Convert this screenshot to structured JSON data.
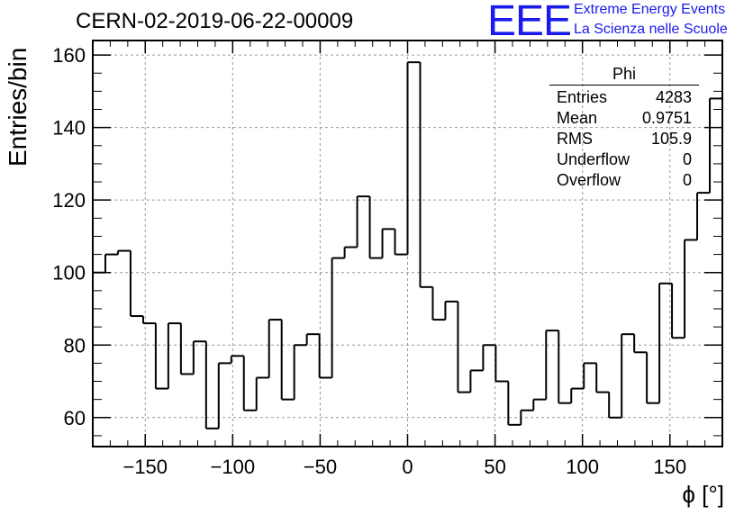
{
  "title": "CERN-02-2019-06-22-00009",
  "logo": {
    "text": "EEE",
    "line1": "Extreme Energy Events",
    "line2": "La Scienza nelle Scuole",
    "color": "#1a1aee"
  },
  "stats": {
    "name": "Phi",
    "rows": [
      {
        "label": "Entries",
        "value": "4283"
      },
      {
        "label": "Mean",
        "value": "0.9751"
      },
      {
        "label": "RMS",
        "value": "105.9"
      },
      {
        "label": "Underflow",
        "value": "0"
      },
      {
        "label": "Overflow",
        "value": "0"
      }
    ]
  },
  "chart_data": {
    "type": "histogram",
    "title": "CERN-02-2019-06-22-00009",
    "xlabel": "ϕ [°]",
    "ylabel": "Entries/bin",
    "xlim": [
      -180,
      180
    ],
    "ylim": [
      52,
      164
    ],
    "bin_width": 7.2,
    "bin_edges_start": -180,
    "values": [
      100,
      105,
      106,
      88,
      86,
      68,
      86,
      72,
      81,
      57,
      75,
      77,
      62,
      71,
      87,
      65,
      80,
      83,
      71,
      104,
      107,
      121,
      104,
      112,
      105,
      158,
      96,
      87,
      92,
      67,
      73,
      80,
      70,
      58,
      62,
      65,
      84,
      64,
      68,
      75,
      67,
      60,
      83,
      78,
      64,
      97,
      82,
      109,
      122,
      148
    ],
    "xticks": [
      -150,
      -100,
      -50,
      0,
      50,
      100,
      150
    ],
    "yticks": [
      60,
      80,
      100,
      120,
      140,
      160
    ],
    "grid": true,
    "line_color": "#000000"
  }
}
